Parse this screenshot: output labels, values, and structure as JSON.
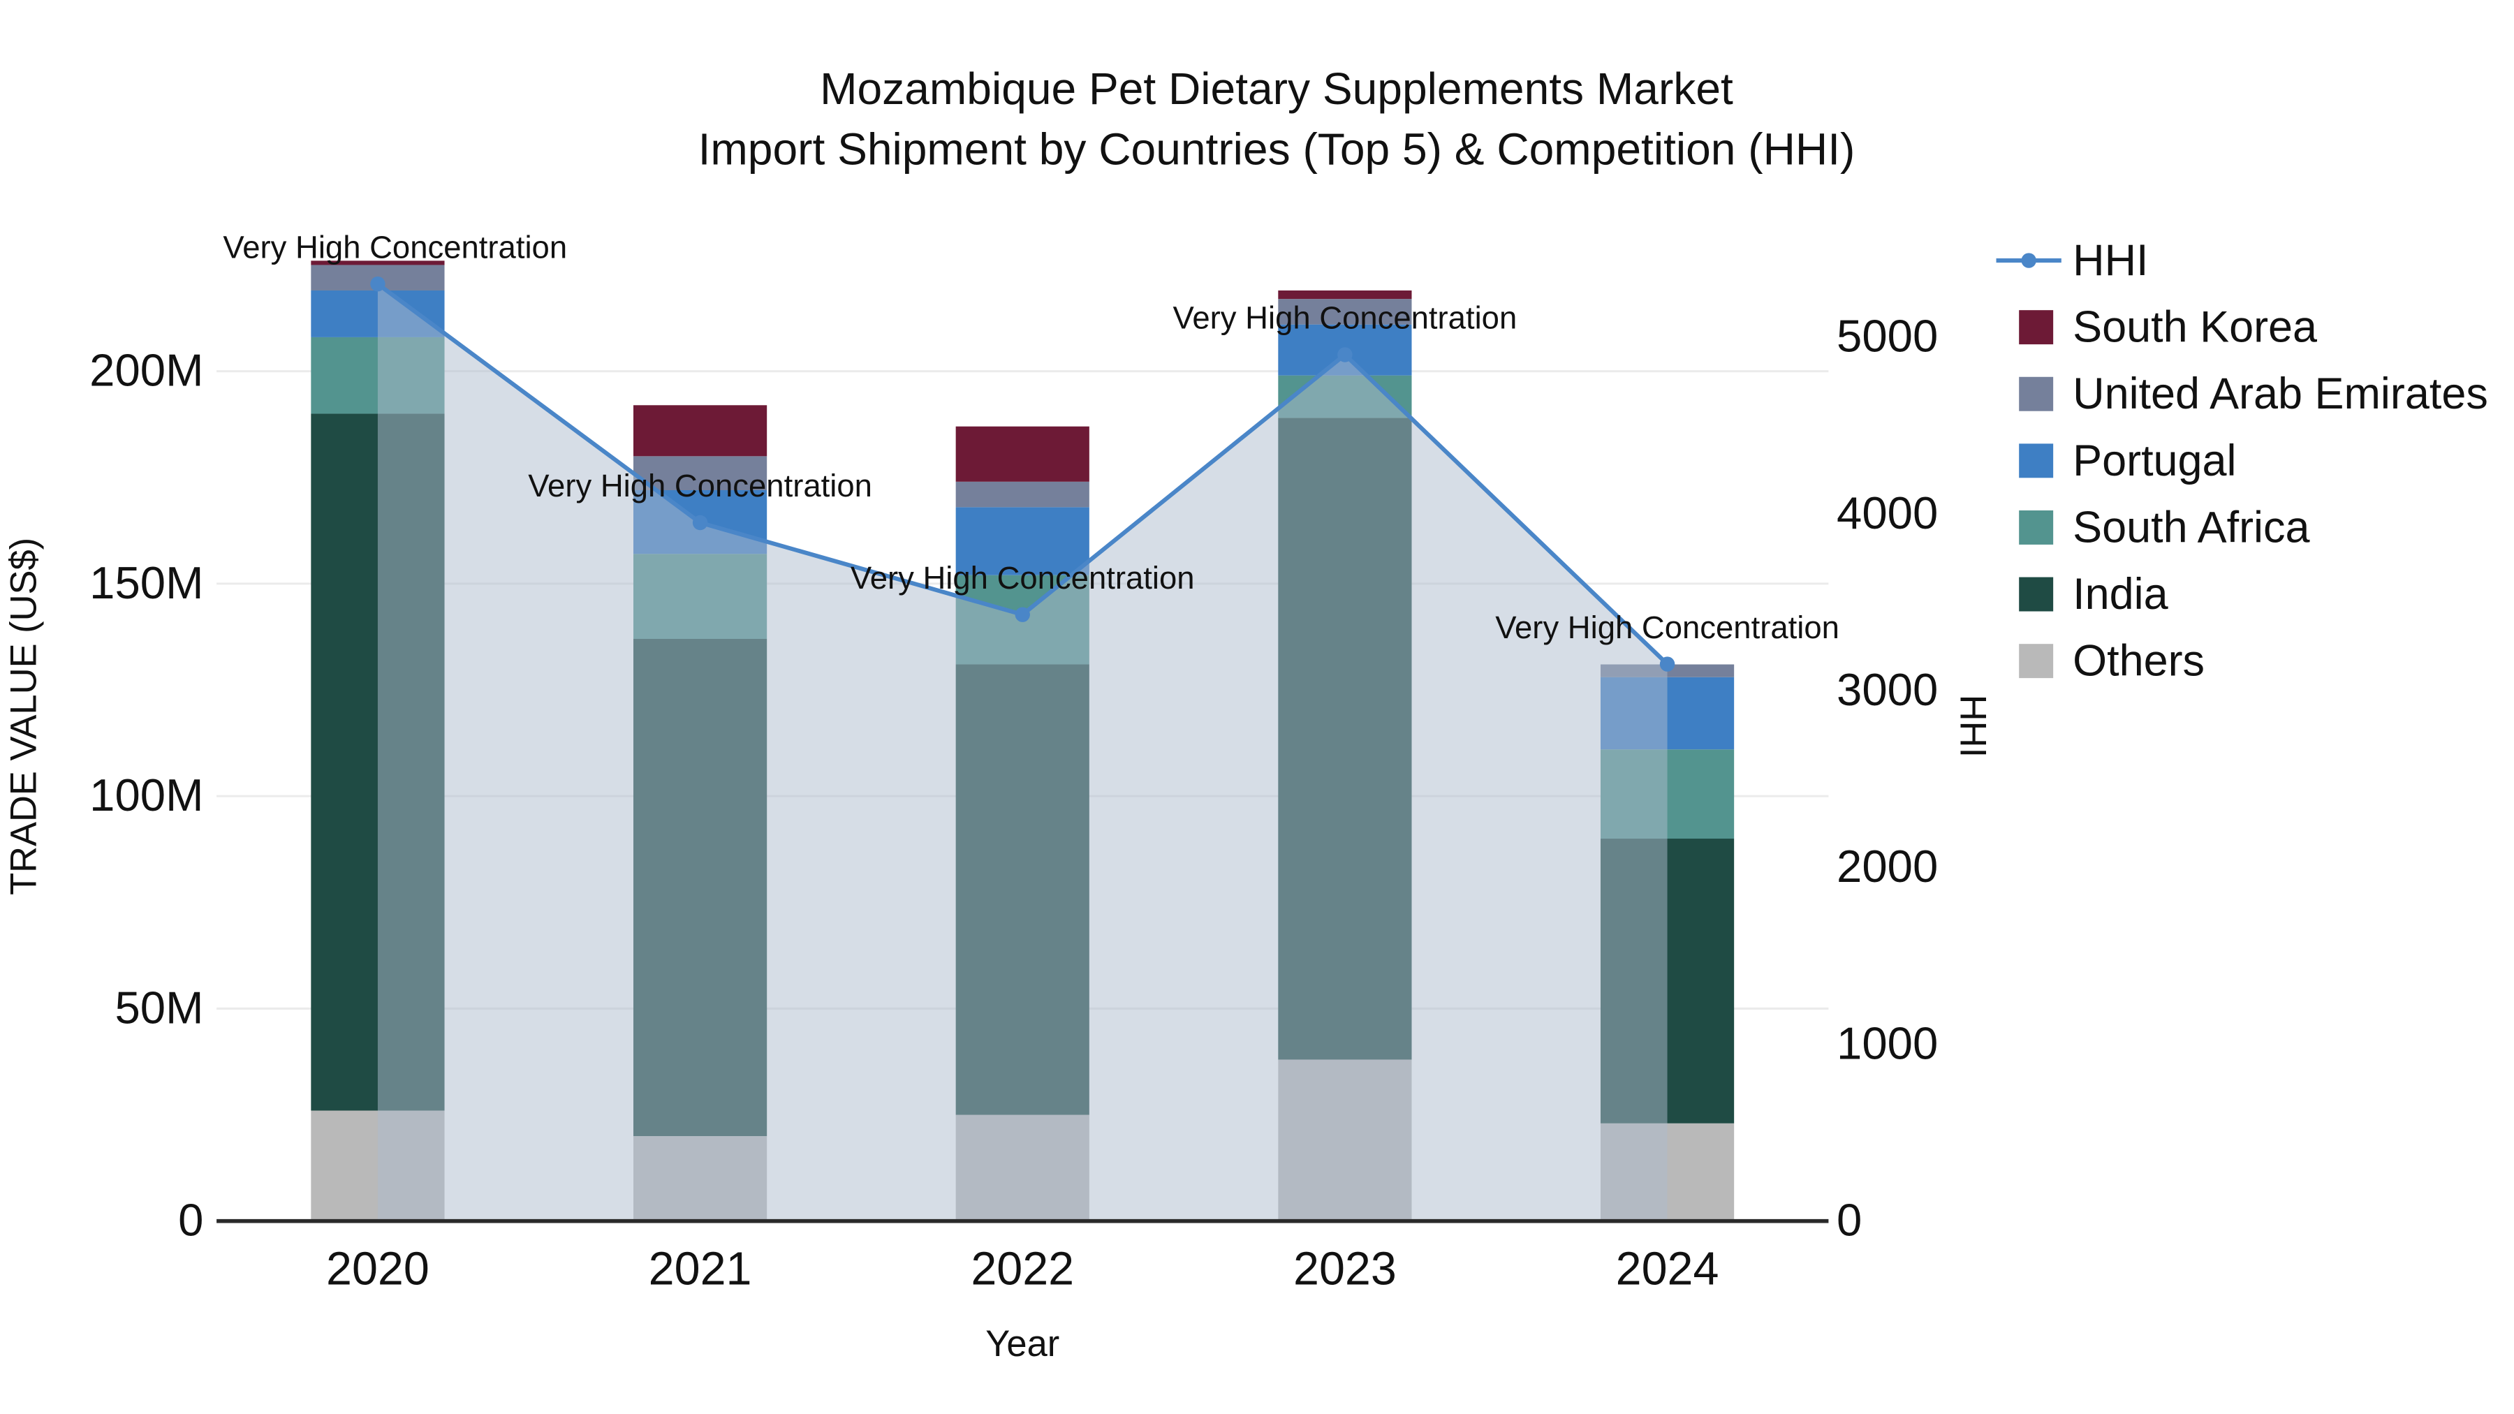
{
  "title": {
    "line1": "Mozambique Pet Dietary Supplements Market",
    "line2": "Import Shipment by Countries (Top 5) & Competition (HHI)"
  },
  "chart_data": {
    "type": "combo-stacked-bar-line",
    "categories": [
      "2020",
      "2021",
      "2022",
      "2023",
      "2024"
    ],
    "bar_unit": "M US$",
    "bar_series": [
      {
        "name": "Others",
        "color": "#b9b9b9",
        "values": [
          26,
          20,
          25,
          38,
          23
        ]
      },
      {
        "name": "India",
        "color": "#1f4b44",
        "values": [
          164,
          117,
          106,
          151,
          67
        ]
      },
      {
        "name": "South Africa",
        "color": "#53948f",
        "values": [
          18,
          20,
          21,
          10,
          21
        ]
      },
      {
        "name": "Portugal",
        "color": "#3e7fc4",
        "values": [
          11,
          15,
          16,
          12,
          17
        ]
      },
      {
        "name": "United Arab Emirates",
        "color": "#75809b",
        "values": [
          6,
          8,
          6,
          6,
          3
        ]
      },
      {
        "name": "South Korea",
        "color": "#6d1a36",
        "values": [
          1,
          12,
          13,
          2,
          0
        ]
      }
    ],
    "line_series": {
      "name": "HHI",
      "color": "#4a86c8",
      "area_color": "rgba(174,188,205,0.5)",
      "values": [
        5300,
        3950,
        3430,
        4900,
        3150
      ]
    },
    "annotations": [
      {
        "year": "2020",
        "text": "Very High Concentration"
      },
      {
        "year": "2021",
        "text": "Very High Concentration"
      },
      {
        "year": "2022",
        "text": "Very High Concentration"
      },
      {
        "year": "2023",
        "text": "Very High Concentration"
      },
      {
        "year": "2024",
        "text": "Very High Concentration"
      }
    ],
    "xlabel": "Year",
    "ylabel_left": "TRADE VALUE (US$)",
    "ylabel_right": "HHI",
    "left_ticks": {
      "values": [
        0,
        50,
        100,
        150,
        200
      ],
      "labels": [
        "0",
        "50M",
        "100M",
        "150M",
        "200M"
      ]
    },
    "right_ticks": {
      "values": [
        0,
        1000,
        2000,
        3000,
        4000,
        5000
      ],
      "labels": [
        "0",
        "1000",
        "2000",
        "3000",
        "4000",
        "5000"
      ]
    },
    "ylim_left": [
      0,
      238
    ],
    "ylim_right": [
      0,
      5560
    ],
    "grid": true,
    "legend_position": "right"
  },
  "legend": {
    "items": [
      "HHI",
      "South Korea",
      "United Arab Emirates",
      "Portugal",
      "South Africa",
      "India",
      "Others"
    ]
  }
}
